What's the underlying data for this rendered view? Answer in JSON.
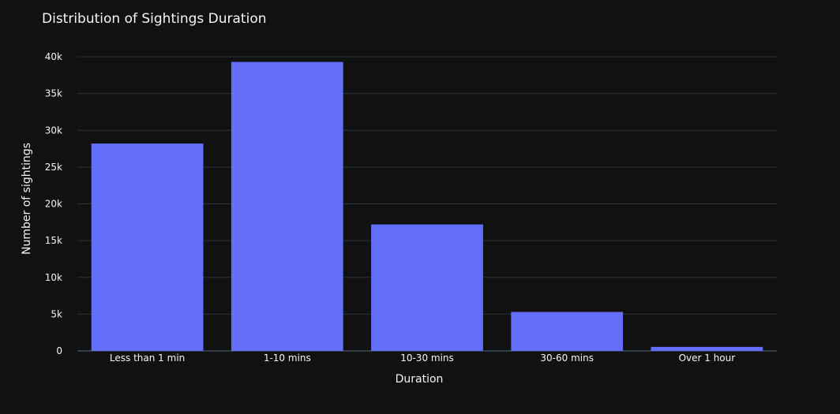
{
  "chart_data": {
    "type": "bar",
    "title": "Distribution of Sightings Duration",
    "xlabel": "Duration",
    "ylabel": "Number of sightings",
    "categories": [
      "Less than 1 min",
      "1-10 mins",
      "10-30 mins",
      "30-60 mins",
      "Over 1 hour"
    ],
    "values": [
      28200,
      39300,
      17200,
      5300,
      550
    ],
    "ylim": [
      0,
      40000
    ],
    "yticks": [
      0,
      5000,
      10000,
      15000,
      20000,
      25000,
      30000,
      35000,
      40000
    ],
    "ytick_labels": [
      "0",
      "5k",
      "10k",
      "15k",
      "20k",
      "25k",
      "30k",
      "35k",
      "40k"
    ],
    "grid": true,
    "legend": "none",
    "colors": {
      "background": "#111111",
      "bar": "#636efa",
      "grid": "#283442",
      "text": "#f2f5fa"
    }
  }
}
